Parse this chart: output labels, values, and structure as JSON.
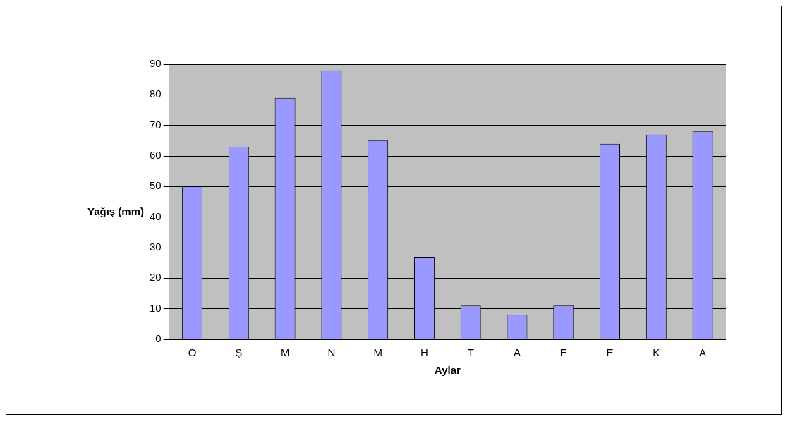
{
  "chart_data": {
    "type": "bar",
    "xlabel": "Aylar",
    "ylabel": "Yağış (mm)",
    "categories": [
      "O",
      "Ş",
      "M",
      "N",
      "M",
      "H",
      "T",
      "A",
      "E",
      "E",
      "K",
      "A"
    ],
    "values": [
      50,
      63,
      79,
      88,
      65,
      27,
      11,
      8,
      11,
      64,
      67,
      68
    ],
    "color": "#9999ff",
    "ylim": [
      0,
      90
    ],
    "yticks": [
      0,
      10,
      20,
      30,
      40,
      50,
      60,
      70,
      80,
      90
    ],
    "grid": "y"
  }
}
